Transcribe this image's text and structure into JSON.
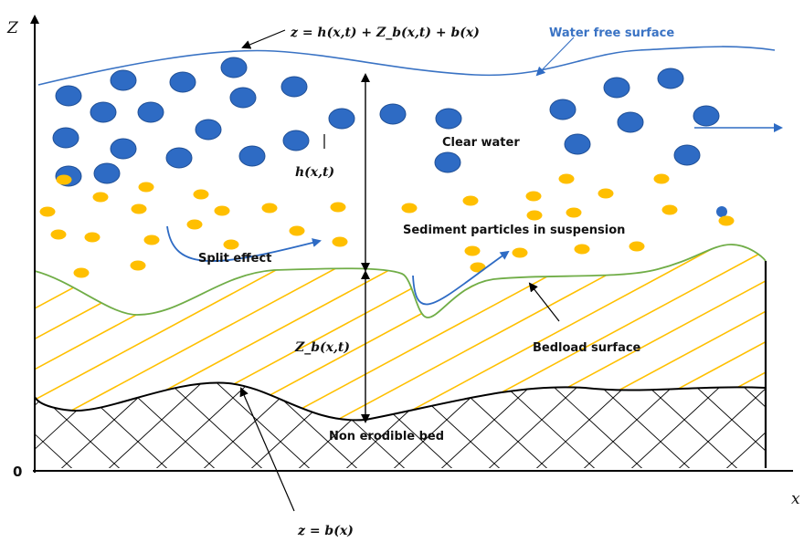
{
  "labels": {
    "free_surface_eq": "z = h(x,t) + Z_b(x,t) + b(x)",
    "water_free_surface": "Water free surface",
    "clear_water": "Clear water",
    "water_height": "h(x,t)",
    "sediment_suspension": "Sediment particles in suspension",
    "split_effect": "Split effect",
    "bed_thickness": "Z_b(x,t)",
    "bedload_surface": "Bedload surface",
    "non_erodible_bed": "Non erodible bed",
    "bed_eq": "z = b(x)",
    "axis_z": "Z",
    "axis_x": "x",
    "origin": "0"
  },
  "colors": {
    "water_line": "#3a73c4",
    "water_drop": "#2e6bc4",
    "water_drop_edge": "#1f4f96",
    "sediment": "#ffbf00",
    "bedload_line": "#70ad47",
    "bedload_hatch": "#ffc000",
    "bed_line": "#000000",
    "flow_arrow": "#2e6bc4"
  }
}
